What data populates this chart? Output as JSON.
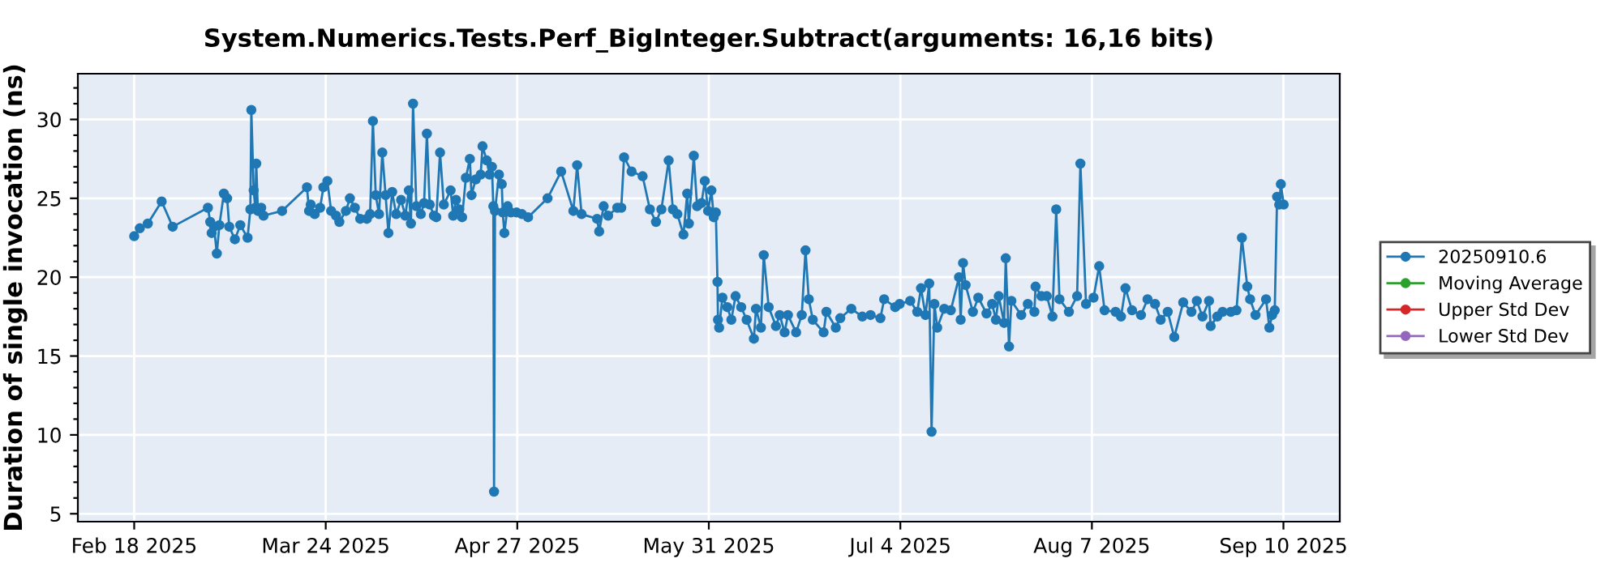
{
  "chart_data": {
    "type": "line",
    "title": "System.Numerics.Tests.Perf_BigInteger.Subtract(arguments: 16,16 bits)",
    "ylabel": "Duration of single invocation (ns)",
    "xlim": [
      "2025-02-08",
      "2025-09-20"
    ],
    "xticks": [
      {
        "value": "2025-02-18",
        "label": "Feb 18 2025"
      },
      {
        "value": "2025-03-24",
        "label": "Mar 24 2025"
      },
      {
        "value": "2025-04-27",
        "label": "Apr 27 2025"
      },
      {
        "value": "2025-05-31",
        "label": "May 31 2025"
      },
      {
        "value": "2025-07-04",
        "label": "Jul 4 2025"
      },
      {
        "value": "2025-08-07",
        "label": "Aug 7 2025"
      },
      {
        "value": "2025-09-10",
        "label": "Sep 10 2025"
      }
    ],
    "ylim": [
      4.5,
      32.9
    ],
    "yticks": [
      5,
      {
        "value": 6,
        "label": null
      },
      {
        "value": 7,
        "label": null
      },
      {
        "value": 8,
        "label": null
      },
      {
        "value": 9,
        "label": null
      },
      10,
      {
        "value": 11,
        "label": null
      },
      {
        "value": 12,
        "label": null
      },
      {
        "value": 13,
        "label": null
      },
      {
        "value": 14,
        "label": null
      },
      15,
      {
        "value": 16,
        "label": null
      },
      {
        "value": 17,
        "label": null
      },
      {
        "value": 18,
        "label": null
      },
      {
        "value": 19,
        "label": null
      },
      20,
      {
        "value": 21,
        "label": null
      },
      {
        "value": 22,
        "label": null
      },
      {
        "value": 23,
        "label": null
      },
      {
        "value": 24,
        "label": null
      },
      25,
      {
        "value": 26,
        "label": null
      },
      {
        "value": 27,
        "label": null
      },
      {
        "value": 28,
        "label": null
      },
      {
        "value": 29,
        "label": null
      },
      30,
      {
        "value": 31,
        "label": null
      },
      {
        "value": 32,
        "label": null
      }
    ],
    "grid": true,
    "legend": "right",
    "marker": "circle",
    "line_style": "solid",
    "series": [
      {
        "name": "20250910.6",
        "color": "#1f77b4",
        "x": [
          "2025-02-18T00:00",
          "2025-02-19T00:00",
          "2025-02-20T10:00",
          "2025-02-22T21:00",
          "2025-02-24T20:00",
          "2025-03-03T02:00",
          "2025-03-03T12:00",
          "2025-03-03T18:00",
          "2025-03-04T04:00",
          "2025-03-04T16:00",
          "2025-03-05T03:00",
          "2025-03-05T22:00",
          "2025-03-06T12:00",
          "2025-03-06T21:00",
          "2025-03-07T21:00",
          "2025-03-08T20:00",
          "2025-03-10T03:00",
          "2025-03-10T15:00",
          "2025-03-10T19:00",
          "2025-03-11T05:00",
          "2025-03-11T12:00",
          "2025-03-11T16:00",
          "2025-03-11T23:00",
          "2025-03-12T13:00",
          "2025-03-12T23:00",
          "2025-03-16T06:00",
          "2025-03-20T16:00",
          "2025-03-21T01:00",
          "2025-03-21T08:00",
          "2025-03-22T01:00",
          "2025-03-23T00:00",
          "2025-03-23T14:00",
          "2025-03-24T07:00",
          "2025-03-24T23:00",
          "2025-03-25T20:00",
          "2025-03-26T10:00",
          "2025-03-27T14:00",
          "2025-03-28T07:00",
          "2025-03-29T04:00",
          "2025-03-30T03:00",
          "2025-03-31T07:00",
          "2025-03-31T21:00",
          "2025-04-01T09:00",
          "2025-04-01T21:00",
          "2025-04-02T11:00",
          "2025-04-03T01:00",
          "2025-04-03T15:00",
          "2025-04-04T03:00",
          "2025-04-04T19:00",
          "2025-04-05T12:00",
          "2025-04-06T09:00",
          "2025-04-07T03:00",
          "2025-04-07T18:00",
          "2025-04-08T03:00",
          "2025-04-08T12:00",
          "2025-04-09T02:00",
          "2025-04-09T21:00",
          "2025-04-10T11:00",
          "2025-04-10T23:00",
          "2025-04-11T11:00",
          "2025-04-12T05:00",
          "2025-04-12T15:00",
          "2025-04-13T07:00",
          "2025-04-13T23:00",
          "2025-04-15T04:00",
          "2025-04-15T15:00",
          "2025-04-16T03:00",
          "2025-04-16T17:00",
          "2025-04-17T05:00",
          "2025-04-17T21:00",
          "2025-04-18T14:00",
          "2025-04-18T21:00",
          "2025-04-19T15:00",
          "2025-04-20T12:00",
          "2025-04-20T20:00",
          "2025-04-21T14:00",
          "2025-04-22T02:00",
          "2025-04-22T12:00",
          "2025-04-22T18:00",
          "2025-04-22T21:00",
          "2025-04-23T01:00",
          "2025-04-23T18:00",
          "2025-04-24T06:00",
          "2025-04-24T10:00",
          "2025-04-24T17:00",
          "2025-04-25T07:00",
          "2025-04-25T21:00",
          "2025-04-26T21:00",
          "2025-04-27T20:00",
          "2025-04-28T22:00",
          "2025-05-02T09:00",
          "2025-05-04T19:00",
          "2025-05-06T23:00",
          "2025-05-07T15:00",
          "2025-05-08T10:00",
          "2025-05-11T04:00",
          "2025-05-11T13:00",
          "2025-05-12T08:00",
          "2025-05-13T03:00",
          "2025-05-14T18:00",
          "2025-05-15T11:00",
          "2025-05-15T23:00",
          "2025-05-17T07:00",
          "2025-05-19T06:00",
          "2025-05-20T13:00",
          "2025-05-21T15:00",
          "2025-05-22T14:00",
          "2025-05-23T21:00",
          "2025-05-24T15:00",
          "2025-05-25T10:00",
          "2025-05-26T12:00",
          "2025-05-27T04:00",
          "2025-05-27T11:00",
          "2025-05-28T08:00",
          "2025-05-28T22:00",
          "2025-05-29T17:00",
          "2025-05-30T07:00",
          "2025-05-30T21:00",
          "2025-05-31T11:00",
          "2025-05-31T21:00",
          "2025-06-01T06:00",
          "2025-06-01T13:00",
          "2025-06-01T15:00",
          "2025-06-01T20:00",
          "2025-06-02T10:00",
          "2025-06-03T07:00",
          "2025-06-04T00:00",
          "2025-06-04T18:00",
          "2025-06-05T18:00",
          "2025-06-06T17:00",
          "2025-06-08T00:00",
          "2025-06-08T09:00",
          "2025-06-09T06:00",
          "2025-06-09T18:00",
          "2025-06-10T15:00",
          "2025-06-11T22:00",
          "2025-06-12T14:00",
          "2025-06-13T11:00",
          "2025-06-14T01:00",
          "2025-06-15T12:00",
          "2025-06-16T12:00",
          "2025-06-17T04:00",
          "2025-06-17T18:00",
          "2025-06-18T11:00",
          "2025-06-20T09:00",
          "2025-06-20T21:00",
          "2025-06-22T13:00",
          "2025-06-23T08:00",
          "2025-06-25T07:00",
          "2025-06-27T06:00",
          "2025-06-28T17:00",
          "2025-06-30T11:00",
          "2025-07-01T03:00",
          "2025-07-03T02:00",
          "2025-07-03T21:00",
          "2025-07-05T18:00",
          "2025-07-07T00:00",
          "2025-07-07T16:00",
          "2025-07-08T11:00",
          "2025-07-09T03:00",
          "2025-07-09T13:00",
          "2025-07-10T01:00",
          "2025-07-10T13:00",
          "2025-07-11T19:00",
          "2025-07-12T23:00",
          "2025-07-14T10:00",
          "2025-07-14T17:00",
          "2025-07-15T03:00",
          "2025-07-15T14:00",
          "2025-07-16T21:00",
          "2025-07-17T20:00",
          "2025-07-19T07:00",
          "2025-07-20T07:00",
          "2025-07-20T23:00",
          "2025-07-21T11:00",
          "2025-07-22T10:00",
          "2025-07-22T17:00",
          "2025-07-23T07:00",
          "2025-07-23T17:00",
          "2025-07-25T11:00",
          "2025-07-26T15:00",
          "2025-07-27T19:00",
          "2025-07-28T00:00",
          "2025-07-29T01:00",
          "2025-07-30T00:00",
          "2025-07-31T00:00",
          "2025-07-31T16:00",
          "2025-08-01T06:00",
          "2025-08-02T22:00",
          "2025-08-04T09:00",
          "2025-08-04T23:00",
          "2025-08-05T23:00",
          "2025-08-07T07:00",
          "2025-08-08T07:00",
          "2025-08-09T06:00",
          "2025-08-11T05:00",
          "2025-08-12T04:00",
          "2025-08-12T23:00",
          "2025-08-14T03:00",
          "2025-08-15T17:00",
          "2025-08-16T21:00",
          "2025-08-18T05:00",
          "2025-08-19T05:00",
          "2025-08-20T11:00",
          "2025-08-21T15:00",
          "2025-08-23T05:00",
          "2025-08-24T16:00",
          "2025-08-25T15:00",
          "2025-08-26T15:00",
          "2025-08-27T19:00",
          "2025-08-28T02:00",
          "2025-08-29T06:00",
          "2025-08-30T05:00",
          "2025-08-31T16:00",
          "2025-09-01T16:00",
          "2025-09-02T15:00",
          "2025-09-03T14:00",
          "2025-09-04T02:00",
          "2025-09-05T01:00",
          "2025-09-06T22:00",
          "2025-09-07T12:00",
          "2025-09-08T00:00",
          "2025-09-08T11:00",
          "2025-09-08T21:00",
          "2025-09-09T06:00",
          "2025-09-09T13:00",
          "2025-09-10T01:00"
        ],
        "values": [
          22.6,
          23.1,
          23.4,
          24.8,
          23.2,
          24.4,
          23.5,
          22.8,
          23.2,
          21.5,
          23.3,
          25.3,
          25.0,
          23.2,
          22.4,
          23.3,
          22.5,
          24.3,
          30.6,
          25.5,
          24.4,
          27.2,
          24.2,
          24.4,
          23.9,
          24.2,
          25.7,
          24.2,
          24.6,
          24.0,
          24.4,
          25.7,
          26.1,
          24.2,
          23.9,
          23.5,
          24.2,
          25.0,
          24.4,
          23.7,
          23.7,
          24.0,
          29.9,
          25.2,
          24.0,
          27.9,
          25.2,
          22.8,
          25.4,
          24.0,
          24.9,
          23.9,
          25.5,
          23.4,
          31.0,
          24.5,
          24.0,
          24.7,
          29.1,
          24.6,
          23.9,
          23.8,
          27.9,
          24.6,
          25.5,
          23.9,
          24.9,
          24.3,
          23.8,
          26.3,
          27.5,
          25.2,
          26.2,
          26.5,
          28.3,
          27.4,
          26.5,
          27.0,
          24.5,
          6.4,
          24.2,
          26.5,
          25.9,
          24.1,
          22.8,
          24.5,
          24.1,
          24.1,
          24.0,
          23.8,
          25.0,
          26.7,
          24.2,
          27.1,
          24.0,
          23.7,
          22.9,
          24.5,
          23.9,
          24.4,
          24.4,
          27.6,
          26.7,
          26.4,
          24.3,
          23.5,
          24.3,
          27.4,
          24.3,
          24.0,
          22.7,
          25.3,
          23.4,
          27.7,
          24.5,
          24.7,
          26.1,
          24.2,
          25.5,
          23.8,
          24.1,
          19.7,
          17.3,
          16.8,
          18.7,
          18.1,
          17.3,
          18.8,
          18.1,
          17.3,
          16.1,
          18.0,
          16.8,
          21.4,
          18.1,
          16.9,
          17.6,
          16.5,
          17.6,
          16.5,
          17.6,
          21.7,
          18.6,
          17.3,
          16.5,
          17.8,
          16.8,
          17.4,
          18.0,
          17.5,
          17.6,
          17.4,
          18.6,
          18.1,
          18.3,
          18.5,
          17.8,
          19.3,
          17.6,
          19.6,
          10.2,
          18.3,
          16.8,
          18.0,
          17.9,
          20.0,
          17.3,
          20.9,
          19.5,
          17.8,
          18.7,
          17.7,
          18.3,
          17.3,
          18.8,
          17.1,
          21.2,
          15.6,
          18.5,
          17.6,
          18.3,
          17.8,
          19.4,
          18.8,
          18.8,
          17.5,
          24.3,
          18.6,
          17.8,
          18.8,
          27.2,
          18.3,
          18.7,
          20.7,
          17.9,
          17.8,
          17.5,
          19.3,
          17.9,
          17.6,
          18.6,
          18.3,
          17.3,
          17.8,
          16.2,
          18.4,
          17.8,
          18.5,
          17.5,
          18.5,
          16.9,
          17.5,
          17.8,
          17.8,
          17.9,
          22.5,
          19.4,
          18.6,
          17.6,
          18.6,
          16.8,
          17.6,
          17.9,
          25.1,
          24.6,
          25.9,
          24.6
        ]
      },
      {
        "name": "Moving Average",
        "color": "#2ca02c"
      },
      {
        "name": "Upper Std Dev",
        "color": "#d62728"
      },
      {
        "name": "Lower Std Dev",
        "color": "#9467bd"
      }
    ]
  }
}
